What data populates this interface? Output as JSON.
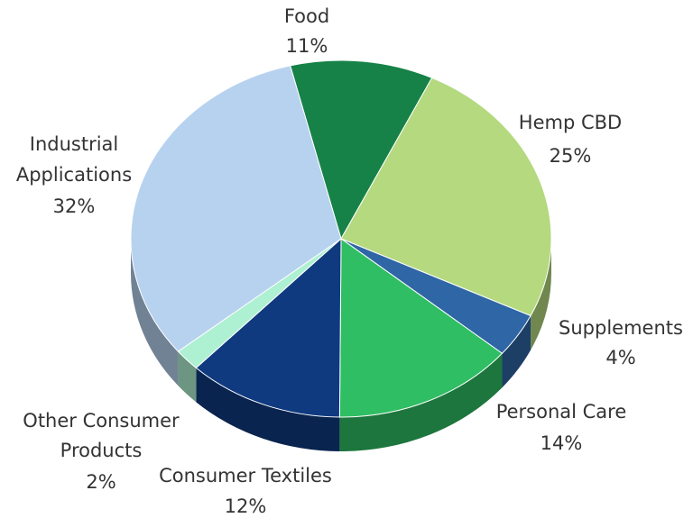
{
  "chart_data": {
    "type": "pie",
    "style": "3d",
    "slices": [
      {
        "label": "Food",
        "value": 11,
        "display": "11%",
        "color": "#168247"
      },
      {
        "label": "Hemp CBD",
        "value": 25,
        "display": "25%",
        "color": "#b4d97f"
      },
      {
        "label": "Supplements",
        "value": 4,
        "display": "4%",
        "color": "#2f66a5"
      },
      {
        "label": "Personal Care",
        "value": 14,
        "display": "14%",
        "color": "#2fbe63"
      },
      {
        "label": "Consumer Textiles",
        "value": 12,
        "display": "12%",
        "color": "#0f3a80"
      },
      {
        "label": "Other Consumer Products",
        "value": 2,
        "display": "2%",
        "color": "#aef0d2"
      },
      {
        "label": "Industrial Applications",
        "value": 32,
        "display": "32%",
        "color": "#b7d2ef"
      }
    ],
    "label_text": {
      "food": [
        "Food",
        "11%"
      ],
      "hemp": [
        "Hemp CBD",
        "25%"
      ],
      "supplements": [
        "Supplements",
        "4%"
      ],
      "personal": [
        "Personal Care",
        "14%"
      ],
      "textiles": [
        "Consumer Textiles",
        "12%"
      ],
      "other": [
        "Other Consumer",
        "Products",
        "2%"
      ],
      "industrial": [
        "Industrial",
        "Applications",
        "32%"
      ]
    }
  }
}
